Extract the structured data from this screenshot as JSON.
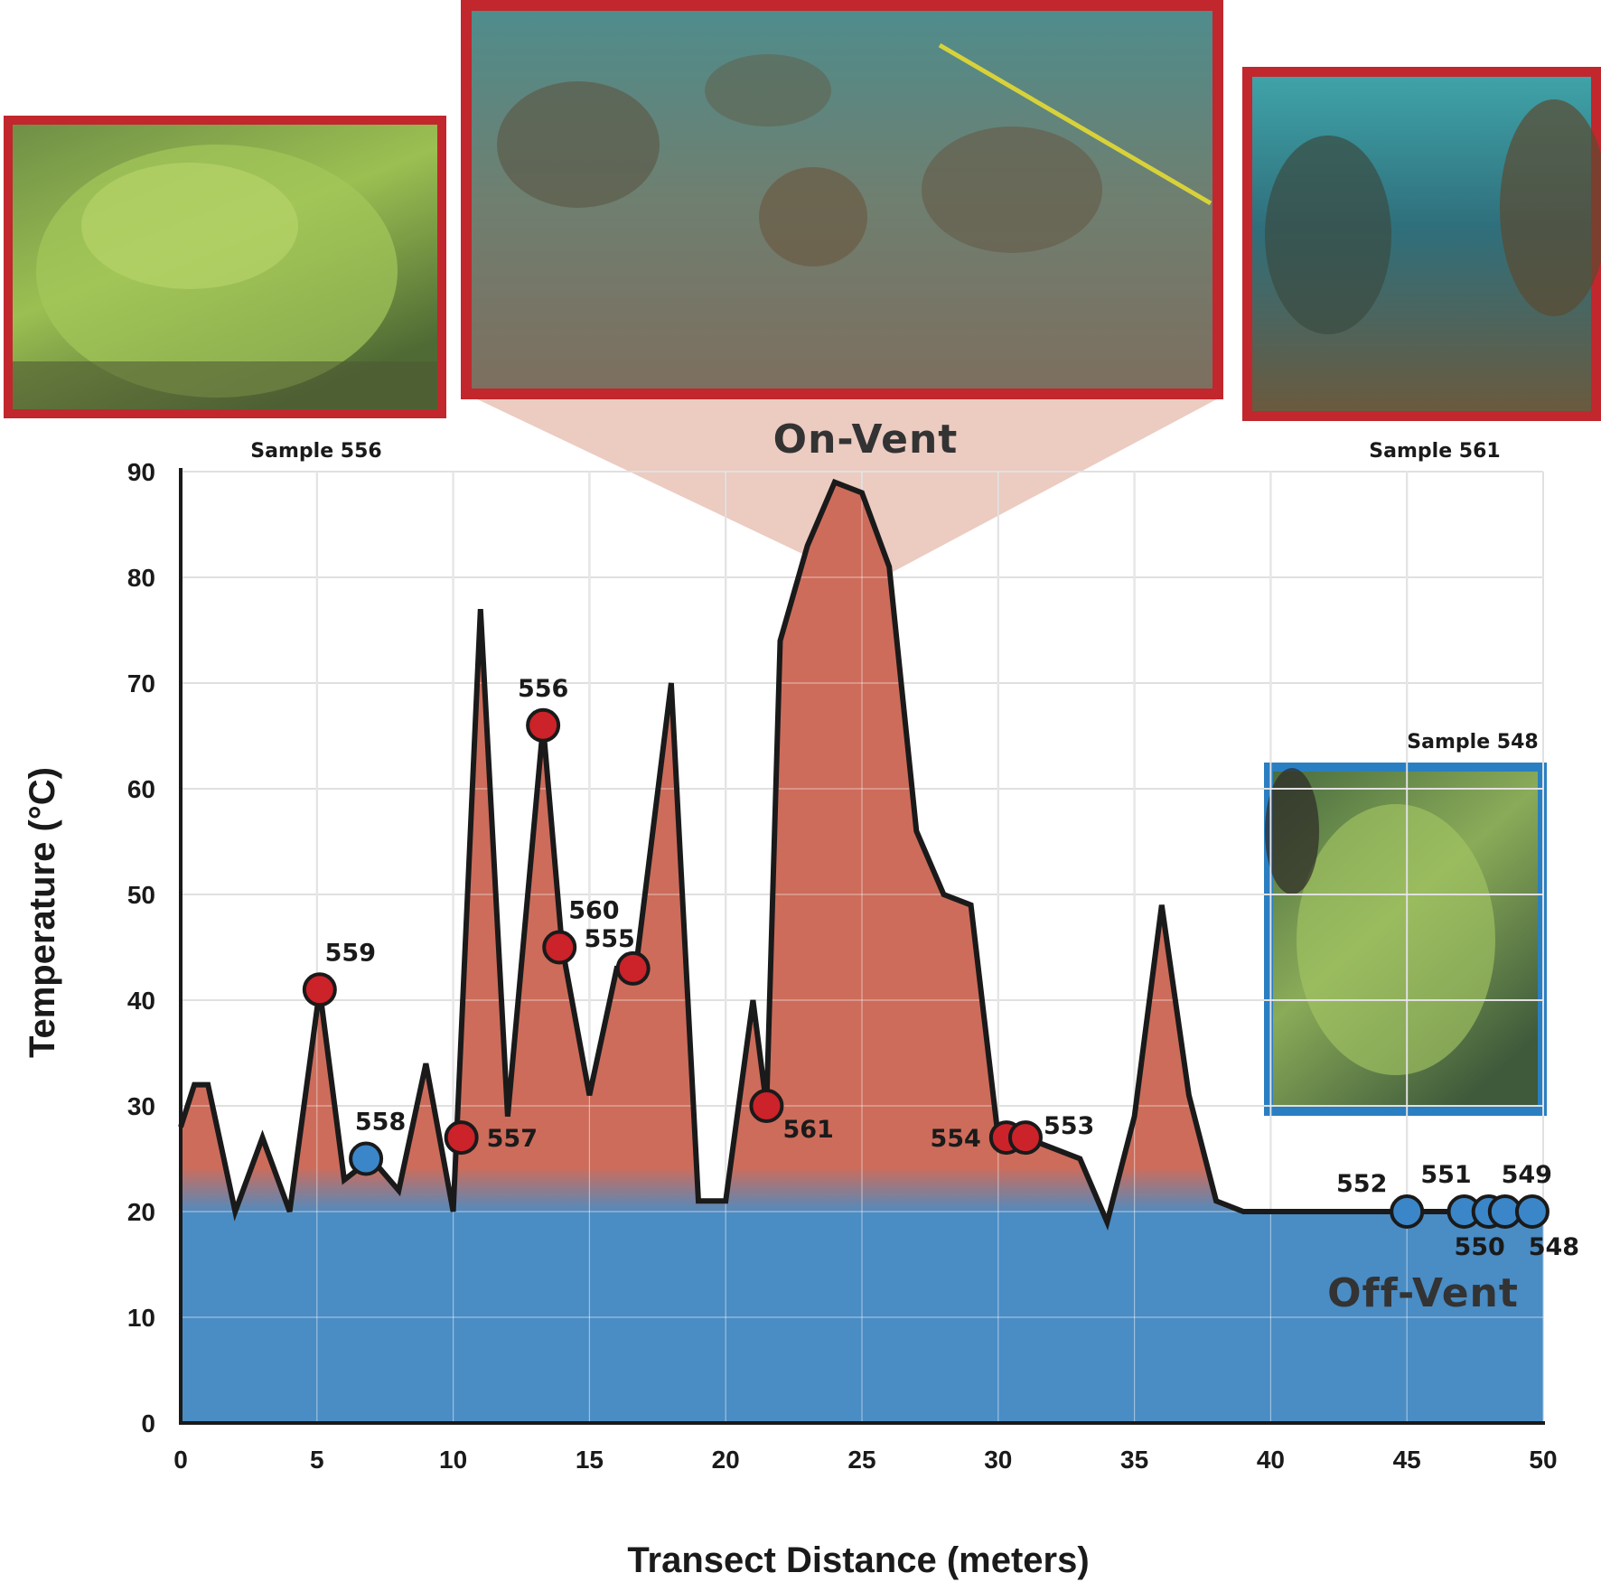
{
  "colors": {
    "on_vent": "#cd6c5b",
    "off_vent": "#4a8cc4",
    "grid": "#d4d4d4",
    "line": "#1a1a1a",
    "marker_on": "#cc2229",
    "marker_off": "#3a86c8",
    "photo_frame_red": "#c1272d",
    "photo_frame_blue": "#2a7fc2"
  },
  "photos": {
    "sample556_caption": "Sample 556",
    "sample561_caption": "Sample 561",
    "sample548_caption": "Sample 548"
  },
  "zones": {
    "on_vent": "On-Vent",
    "off_vent": "Off-Vent"
  },
  "chart_data": {
    "type": "area",
    "title": "",
    "xlabel": "Transect Distance (meters)",
    "ylabel": "Temperature (°C)",
    "xlim": [
      0,
      50
    ],
    "ylim": [
      0,
      90
    ],
    "x_ticks": [
      0,
      5,
      10,
      15,
      20,
      25,
      30,
      35,
      40,
      45,
      50
    ],
    "y_ticks": [
      0,
      10,
      20,
      30,
      40,
      50,
      60,
      70,
      80,
      90
    ],
    "grid": true,
    "threshold_c": 23,
    "series": [
      {
        "points": [
          [
            0,
            28
          ],
          [
            0.5,
            32
          ],
          [
            1,
            32
          ],
          [
            2,
            20
          ],
          [
            3,
            27
          ],
          [
            4,
            20
          ],
          [
            5.1,
            41
          ],
          [
            6,
            23
          ],
          [
            7,
            25
          ],
          [
            8,
            22
          ],
          [
            9,
            34
          ],
          [
            10,
            20
          ],
          [
            11,
            77
          ],
          [
            12,
            29
          ],
          [
            13.3,
            66
          ],
          [
            14,
            45
          ],
          [
            15,
            31
          ],
          [
            16,
            43
          ],
          [
            16.7,
            43
          ],
          [
            18,
            70
          ],
          [
            19,
            21
          ],
          [
            20,
            21
          ],
          [
            21,
            40
          ],
          [
            21.5,
            30
          ],
          [
            22,
            74
          ],
          [
            23,
            83
          ],
          [
            24,
            89
          ],
          [
            25,
            88
          ],
          [
            26,
            81
          ],
          [
            27,
            56
          ],
          [
            28,
            50
          ],
          [
            29,
            49
          ],
          [
            30,
            27
          ],
          [
            31,
            27
          ],
          [
            33,
            25
          ],
          [
            34,
            19
          ],
          [
            35,
            29
          ],
          [
            36,
            49
          ],
          [
            37,
            31
          ],
          [
            38,
            21
          ],
          [
            39,
            20
          ],
          [
            40,
            20
          ],
          [
            45,
            20
          ],
          [
            47,
            20
          ],
          [
            48,
            20
          ],
          [
            48.6,
            20
          ],
          [
            49.5,
            20
          ]
        ]
      }
    ],
    "samples": [
      {
        "id": "559",
        "x": 5.1,
        "y": 41,
        "zone": "on"
      },
      {
        "id": "558",
        "x": 6.8,
        "y": 25,
        "zone": "off"
      },
      {
        "id": "557",
        "x": 10.3,
        "y": 27,
        "zone": "on"
      },
      {
        "id": "556",
        "x": 13.3,
        "y": 66,
        "zone": "on"
      },
      {
        "id": "560",
        "x": 13.9,
        "y": 45,
        "zone": "on"
      },
      {
        "id": "555",
        "x": 16.6,
        "y": 43,
        "zone": "on"
      },
      {
        "id": "561",
        "x": 21.5,
        "y": 30,
        "zone": "on"
      },
      {
        "id": "554",
        "x": 30.3,
        "y": 27,
        "zone": "on"
      },
      {
        "id": "553",
        "x": 31.0,
        "y": 27,
        "zone": "on"
      },
      {
        "id": "552",
        "x": 45.0,
        "y": 20,
        "zone": "off"
      },
      {
        "id": "551",
        "x": 47.1,
        "y": 20,
        "zone": "off"
      },
      {
        "id": "550",
        "x": 48.0,
        "y": 20,
        "zone": "off"
      },
      {
        "id": "549",
        "x": 48.6,
        "y": 20,
        "zone": "off"
      },
      {
        "id": "548",
        "x": 49.6,
        "y": 20,
        "zone": "off"
      }
    ]
  }
}
